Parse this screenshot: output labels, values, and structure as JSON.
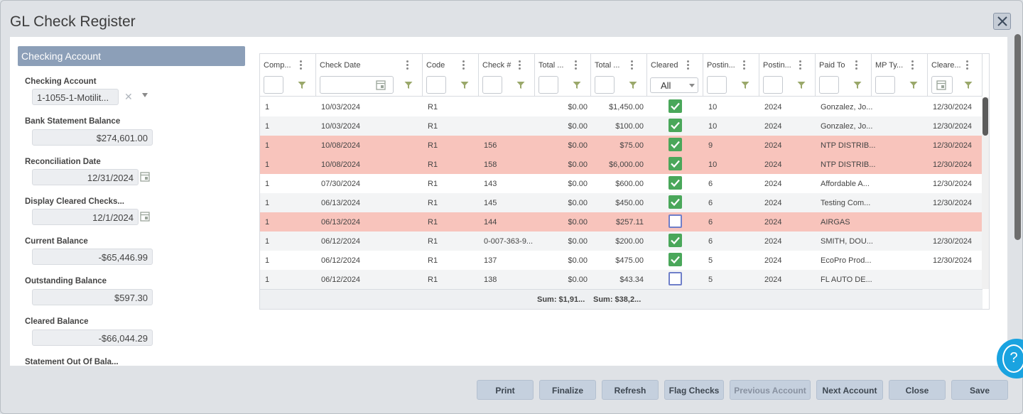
{
  "window": {
    "title": "GL Check Register"
  },
  "left": {
    "section_title": "Checking Account",
    "checking_account": {
      "label": "Checking Account",
      "value": "1-1055-1-Motilit..."
    },
    "bank_statement_balance": {
      "label": "Bank Statement Balance",
      "value": "$274,601.00"
    },
    "reconciliation_date": {
      "label": "Reconciliation Date",
      "value": "12/31/2024"
    },
    "display_cleared_checks": {
      "label": "Display Cleared Checks...",
      "value": "12/1/2024"
    },
    "current_balance": {
      "label": "Current Balance",
      "value": "-$65,446.99"
    },
    "outstanding_balance": {
      "label": "Outstanding Balance",
      "value": "$597.30"
    },
    "cleared_balance": {
      "label": "Cleared Balance",
      "value": "-$66,044.29"
    },
    "statement_out_of_balance": {
      "label": "Statement Out Of Bala..."
    }
  },
  "grid": {
    "columns": [
      "Comp...",
      "Check Date",
      "Code",
      "Check #",
      "Total ...",
      "Total ...",
      "Cleared",
      "Postin...",
      "Postin...",
      "Paid To",
      "MP Ty...",
      "Cleare..."
    ],
    "cleared_filter": "All",
    "rows": [
      {
        "comp": "1",
        "date": "10/03/2024",
        "code": "R1",
        "check": "",
        "total1": "$0.00",
        "total2": "$1,450.00",
        "cleared": true,
        "post1": "10",
        "post2": "2024",
        "paid": "Gonzalez, Jo...",
        "mp": "",
        "cdate": "12/30/2024",
        "flag": false
      },
      {
        "comp": "1",
        "date": "10/03/2024",
        "code": "R1",
        "check": "",
        "total1": "$0.00",
        "total2": "$100.00",
        "cleared": true,
        "post1": "10",
        "post2": "2024",
        "paid": "Gonzalez, Jo...",
        "mp": "",
        "cdate": "12/30/2024",
        "flag": false
      },
      {
        "comp": "1",
        "date": "10/08/2024",
        "code": "R1",
        "check": "156",
        "total1": "$0.00",
        "total2": "$75.00",
        "cleared": true,
        "post1": "9",
        "post2": "2024",
        "paid": "NTP DISTRIB...",
        "mp": "",
        "cdate": "12/30/2024",
        "flag": true
      },
      {
        "comp": "1",
        "date": "10/08/2024",
        "code": "R1",
        "check": "158",
        "total1": "$0.00",
        "total2": "$6,000.00",
        "cleared": true,
        "post1": "10",
        "post2": "2024",
        "paid": "NTP DISTRIB...",
        "mp": "",
        "cdate": "12/30/2024",
        "flag": true
      },
      {
        "comp": "1",
        "date": "07/30/2024",
        "code": "R1",
        "check": "143",
        "total1": "$0.00",
        "total2": "$600.00",
        "cleared": true,
        "post1": "6",
        "post2": "2024",
        "paid": "Affordable A...",
        "mp": "",
        "cdate": "12/30/2024",
        "flag": false
      },
      {
        "comp": "1",
        "date": "06/13/2024",
        "code": "R1",
        "check": "145",
        "total1": "$0.00",
        "total2": "$450.00",
        "cleared": true,
        "post1": "6",
        "post2": "2024",
        "paid": "Testing Com...",
        "mp": "",
        "cdate": "12/30/2024",
        "flag": false
      },
      {
        "comp": "1",
        "date": "06/13/2024",
        "code": "R1",
        "check": "144",
        "total1": "$0.00",
        "total2": "$257.11",
        "cleared": false,
        "post1": "6",
        "post2": "2024",
        "paid": "AIRGAS",
        "mp": "",
        "cdate": "",
        "flag": true
      },
      {
        "comp": "1",
        "date": "06/12/2024",
        "code": "R1",
        "check": "0-007-363-9...",
        "total1": "$0.00",
        "total2": "$200.00",
        "cleared": true,
        "post1": "6",
        "post2": "2024",
        "paid": "SMITH, DOU...",
        "mp": "",
        "cdate": "12/30/2024",
        "flag": false
      },
      {
        "comp": "1",
        "date": "06/12/2024",
        "code": "R1",
        "check": "137",
        "total1": "$0.00",
        "total2": "$475.00",
        "cleared": true,
        "post1": "5",
        "post2": "2024",
        "paid": "EcoPro Prod...",
        "mp": "",
        "cdate": "12/30/2024",
        "flag": false
      },
      {
        "comp": "1",
        "date": "06/12/2024",
        "code": "R1",
        "check": "138",
        "total1": "$0.00",
        "total2": "$43.34",
        "cleared": false,
        "post1": "5",
        "post2": "2024",
        "paid": "FL AUTO DE...",
        "mp": "",
        "cdate": "",
        "flag": false
      }
    ],
    "sum1": "Sum: $1,91...",
    "sum2": "Sum: $38,2..."
  },
  "buttons": {
    "print": "Print",
    "finalize": "Finalize",
    "refresh": "Refresh",
    "flag_checks": "Flag Checks",
    "previous_account": "Previous Account",
    "next_account": "Next Account",
    "close": "Close",
    "save": "Save"
  },
  "help": {
    "glyph": "?"
  },
  "colors": {
    "header_blue": "#8c9fb8",
    "flag_row": "#f8c4bc",
    "cleared_green": "#4aa75a",
    "help_blue": "#1aa3e0"
  }
}
